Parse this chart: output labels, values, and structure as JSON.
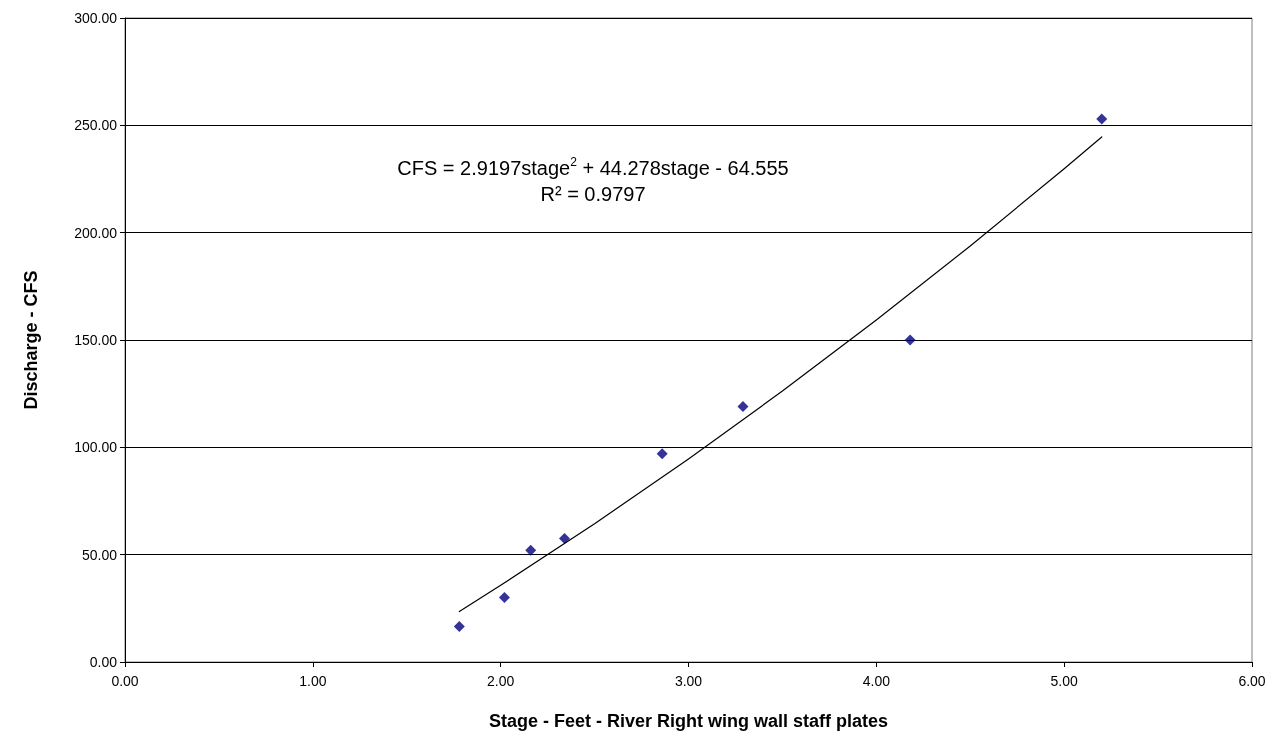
{
  "chart_data": {
    "type": "scatter",
    "xlabel": "Stage - Feet - River Right wing wall staff plates",
    "ylabel": "Discharge - CFS",
    "annotations": [
      "CFS = 2.9197stage$^{2}$ + 44.278stage - 64.555",
      "R² = 0.9797"
    ],
    "x": [
      1.78,
      2.02,
      2.16,
      2.34,
      2.86,
      3.29,
      4.18,
      5.2
    ],
    "series": [
      {
        "color": "#000080",
        "marker": "diamond",
        "values": [
          16.5,
          30,
          52,
          57.5,
          97,
          119,
          150,
          253
        ]
      },
      {
        "type": "line",
        "color": "#000000",
        "marker": "none",
        "line_style": "solid",
        "x": [
          1.78,
          2.0,
          2.5,
          3.0,
          3.5,
          4.0,
          4.5,
          5.0,
          5.2
        ],
        "values": [
          23.5,
          35.7,
          64.4,
          94.6,
          126.2,
          159.3,
          193.8,
          229.8,
          244.6
        ]
      }
    ],
    "xlim": [
      0,
      6
    ],
    "xticks": [
      {
        "value": 0,
        "label": "0.00"
      },
      {
        "value": 1,
        "label": "1.00"
      },
      {
        "value": 2,
        "label": "2.00"
      },
      {
        "value": 3,
        "label": "3.00"
      },
      {
        "value": 4,
        "label": "4.00"
      },
      {
        "value": 5,
        "label": "5.00"
      },
      {
        "value": 6,
        "label": "6.00"
      }
    ],
    "ylim": [
      0,
      300
    ],
    "yticks": [
      {
        "value": 0,
        "label": "0.00"
      },
      {
        "value": 50,
        "label": "50.00"
      },
      {
        "value": 100,
        "label": "100.00"
      },
      {
        "value": 150,
        "label": "150.00"
      },
      {
        "value": 200,
        "label": "200.00"
      },
      {
        "value": 250,
        "label": "250.00"
      },
      {
        "value": 300,
        "label": "300.00"
      }
    ],
    "grid": "y"
  }
}
